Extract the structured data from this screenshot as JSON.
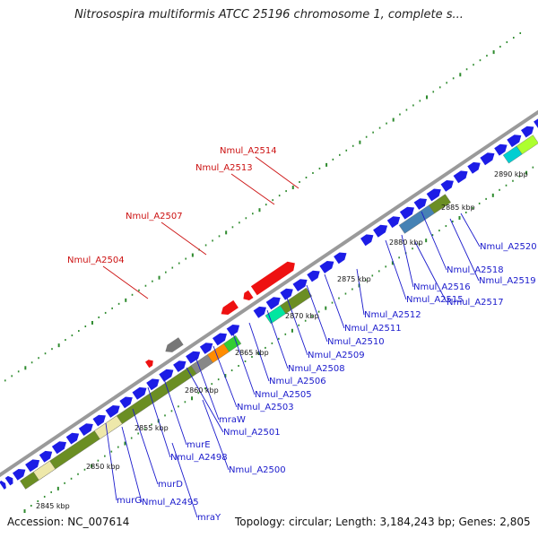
{
  "title": "Nitrosospira multiformis ATCC 25196 chromosome 1, complete s...",
  "footer": {
    "accession": "Accession: NC_007614",
    "topology": "Topology: circular; Length: 3,184,243 bp; Genes: 2,805"
  },
  "colors": {
    "forward_gene": "#1c1ce6",
    "reverse_gene": "#1c1ce6",
    "highlight_gene": "#ee1111",
    "highlight_label": "#cc1111",
    "gene_label": "#1a1acc",
    "backbone": "#9a9a9a",
    "tick_dots": "#2e8b2e",
    "olive_band": "#6b8e23",
    "tan_band": "#eee8aa"
  },
  "scale_labels": [
    "2845 kbp",
    "2850 kbp",
    "2855 kbp",
    "2860 kbp",
    "2865 kbp",
    "2870 kbp",
    "2875 kbp",
    "2880 kbp",
    "2885 kbp",
    "2890 kbp"
  ],
  "highlighted_genes": [
    "Nmul_A2514",
    "Nmul_A2513",
    "Nmul_A2507",
    "Nmul_A2504"
  ],
  "gene_labels": [
    "Nmul_A2520",
    "Nmul_A2518",
    "Nmul_A2519",
    "Nmul_A2516",
    "Nmul_A2515",
    "Nmul_A2517",
    "Nmul_A2512",
    "Nmul_A2511",
    "Nmul_A2510",
    "Nmul_A2509",
    "Nmul_A2508",
    "Nmul_A2506",
    "Nmul_A2505",
    "Nmul_A2503",
    "mraW",
    "Nmul_A2501",
    "murE",
    "Nmul_A2498",
    "Nmul_A2500",
    "murD",
    "murG",
    "Nmul_A2495",
    "mraY"
  ]
}
